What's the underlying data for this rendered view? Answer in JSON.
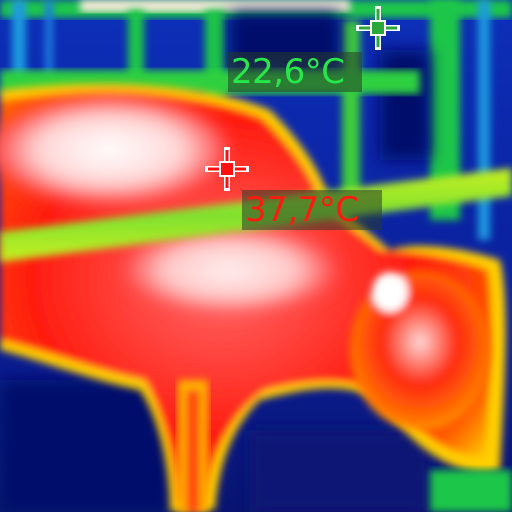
{
  "measurements": {
    "cold_spot": {
      "temperature": "22,6°C",
      "color": "#27e84a",
      "icon": "crosshair-icon"
    },
    "hot_spot": {
      "temperature": "37,7°C",
      "color": "#ff1010",
      "icon": "crosshair-icon"
    }
  },
  "palette": {
    "cold": "#0a1f9a",
    "cool": "#1a7be0",
    "mid": "#1ec64a",
    "warm": "#f2ef1a",
    "hot": "#ff2a10",
    "hottest": "#ffffff"
  }
}
